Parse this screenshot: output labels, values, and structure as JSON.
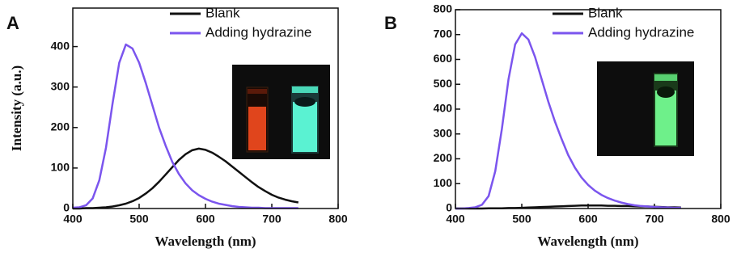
{
  "chart_data": [
    {
      "type": "line",
      "panel_label": "A",
      "xlabel": "Wavelength (nm)",
      "ylabel": "Intensity (a.u.)",
      "xlim": [
        400,
        800
      ],
      "xticks": [
        400,
        500,
        600,
        700,
        800
      ],
      "ylim": [
        0,
        495
      ],
      "yticks": [
        0,
        100,
        200,
        300,
        400
      ],
      "x": [
        400,
        410,
        420,
        430,
        440,
        450,
        460,
        470,
        480,
        490,
        500,
        510,
        520,
        530,
        540,
        550,
        560,
        570,
        580,
        590,
        600,
        610,
        620,
        630,
        640,
        650,
        660,
        670,
        680,
        690,
        700,
        710,
        720,
        730,
        740
      ],
      "series": [
        {
          "name": "Blank",
          "color": "#111111",
          "values": [
            0,
            0,
            1,
            1,
            2,
            3,
            5,
            8,
            12,
            18,
            26,
            37,
            50,
            66,
            84,
            102,
            120,
            134,
            144,
            148,
            145,
            138,
            128,
            117,
            104,
            91,
            78,
            65,
            53,
            43,
            34,
            27,
            22,
            18,
            15
          ]
        },
        {
          "name": "Adding hydrazine",
          "color": "#7b55ee",
          "values": [
            2,
            3,
            8,
            25,
            70,
            150,
            260,
            360,
            405,
            395,
            360,
            310,
            255,
            200,
            155,
            115,
            85,
            62,
            45,
            33,
            24,
            17,
            12,
            9,
            6,
            4,
            3,
            2,
            2,
            1,
            1,
            1,
            1,
            1,
            1
          ]
        }
      ]
    },
    {
      "type": "line",
      "panel_label": "B",
      "xlabel": "Wavelength (nm)",
      "xlim": [
        400,
        800
      ],
      "xticks": [
        400,
        500,
        600,
        700,
        800
      ],
      "ylim": [
        0,
        800
      ],
      "yticks": [
        0,
        100,
        200,
        300,
        400,
        500,
        600,
        700,
        800
      ],
      "x": [
        400,
        410,
        420,
        430,
        440,
        450,
        460,
        470,
        480,
        490,
        500,
        510,
        520,
        530,
        540,
        550,
        560,
        570,
        580,
        590,
        600,
        610,
        620,
        630,
        640,
        650,
        660,
        670,
        680,
        690,
        700,
        710,
        720,
        730,
        740
      ],
      "series": [
        {
          "name": "Blank",
          "color": "#111111",
          "values": [
            0,
            0,
            0,
            0,
            0,
            1,
            1,
            1,
            2,
            2,
            3,
            4,
            5,
            6,
            7,
            8,
            9,
            10,
            11,
            12,
            12,
            12,
            12,
            11,
            11,
            10,
            10,
            9,
            8,
            8,
            7,
            6,
            5,
            5,
            4
          ]
        },
        {
          "name": "Adding hydrazine",
          "color": "#7b55ee",
          "values": [
            0,
            0,
            2,
            5,
            15,
            50,
            150,
            320,
            520,
            660,
            705,
            680,
            610,
            520,
            430,
            350,
            280,
            215,
            165,
            125,
            95,
            72,
            55,
            42,
            32,
            24,
            18,
            13,
            10,
            8,
            6,
            5,
            4,
            3,
            3
          ]
        }
      ]
    }
  ]
}
